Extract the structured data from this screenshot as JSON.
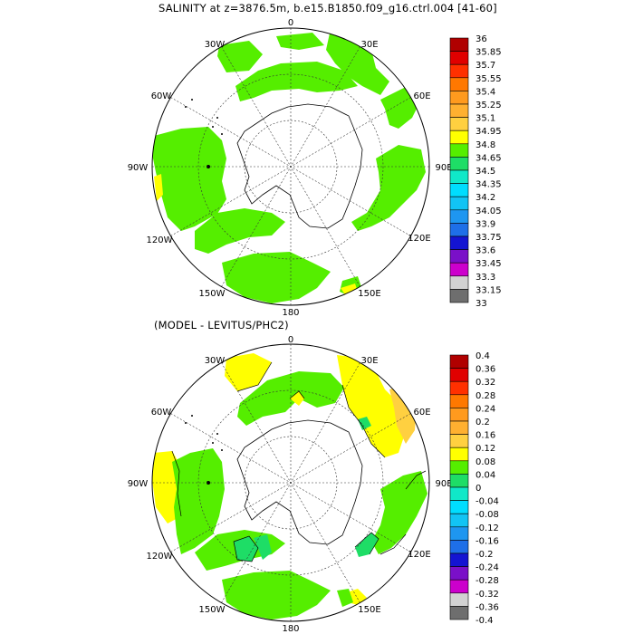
{
  "top_panel": {
    "title": "SALINITY at z=3876.5m, b.e15.B1850.f09_g16.ctrl.004 [41-60]",
    "colorbar": {
      "labels": [
        "36",
        "35.85",
        "35.7",
        "35.55",
        "35.4",
        "35.25",
        "35.1",
        "34.95",
        "34.8",
        "34.65",
        "34.5",
        "34.35",
        "34.2",
        "34.05",
        "33.9",
        "33.75",
        "33.6",
        "33.45",
        "33.3",
        "33.15",
        "33"
      ],
      "colors": [
        "#b00000",
        "#e00000",
        "#ff3000",
        "#ff7800",
        "#ff9a1e",
        "#ffb030",
        "#ffd040",
        "#ffff00",
        "#55ee00",
        "#1edd66",
        "#10e8c8",
        "#00ddff",
        "#12c4f4",
        "#1e96f0",
        "#1e6fe8",
        "#1414d2",
        "#7a10c8",
        "#cc00cc",
        "#d2d2d2",
        "#6e6e6e"
      ]
    },
    "lon_labels": {
      "n": "0",
      "ne": "30E",
      "e1": "60E",
      "e": "90E",
      "se1": "120E",
      "se": "150E",
      "s": "180",
      "sw": "150W",
      "sw1": "120W",
      "w": "90W",
      "w1": "60W",
      "nw": "30W"
    }
  },
  "bottom_panel": {
    "title": "(MODEL - LEVITUS/PHC2)",
    "colorbar": {
      "labels": [
        "0.4",
        "0.36",
        "0.32",
        "0.28",
        "0.24",
        "0.2",
        "0.16",
        "0.12",
        "0.08",
        "0.04",
        "0",
        "-0.04",
        "-0.08",
        "-0.12",
        "-0.16",
        "-0.2",
        "-0.24",
        "-0.28",
        "-0.32",
        "-0.36",
        "-0.4"
      ],
      "colors": [
        "#b00000",
        "#e00000",
        "#ff3000",
        "#ff7800",
        "#ff9a1e",
        "#ffb030",
        "#ffd040",
        "#ffff00",
        "#55ee00",
        "#1edd66",
        "#10e8c8",
        "#00ddff",
        "#12c4f4",
        "#1e96f0",
        "#1e6fe8",
        "#1414d2",
        "#7a10c8",
        "#cc00cc",
        "#d2d2d2",
        "#6e6e6e"
      ]
    },
    "lon_labels": {
      "n": "0",
      "ne": "30E",
      "e1": "60E",
      "e": "90E",
      "se1": "120E",
      "se": "150E",
      "s": "180",
      "sw": "150W",
      "sw1": "120W",
      "w": "90W",
      "w1": "60W",
      "nw": "30W"
    }
  }
}
